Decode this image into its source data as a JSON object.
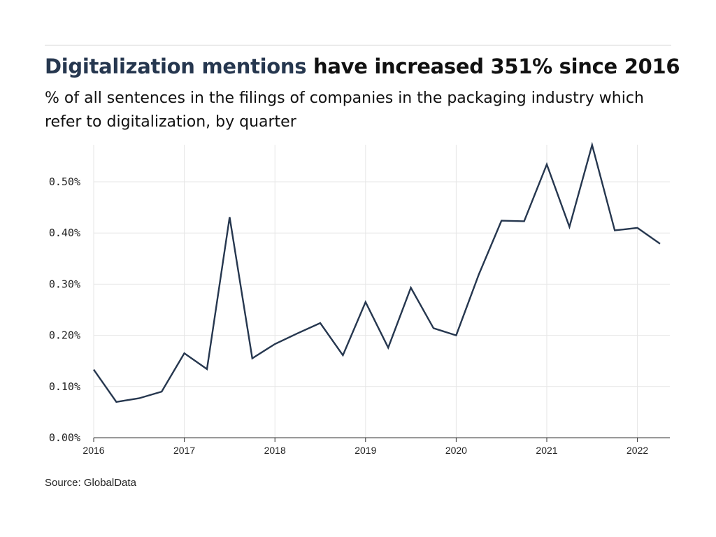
{
  "header": {
    "title_highlight": "Digitalization mentions",
    "title_rest": " have increased 351% since 2016",
    "subtitle": "% of all sentences in the filings of companies in the packaging industry which refer to digitalization, by quarter"
  },
  "footer": {
    "source": "Source: GlobalData"
  },
  "colors": {
    "highlight": "#26374f",
    "line": "#26374f",
    "grid": "#e6e6e6",
    "axis": "#333333"
  },
  "chart_data": {
    "type": "line",
    "title": "Digitalization mentions have increased 351% since 2016",
    "subtitle": "% of all sentences in the filings of companies in the packaging industry which refer to digitalization, by quarter",
    "xlabel": "",
    "ylabel": "",
    "x_ticks": [
      "2016",
      "2017",
      "2018",
      "2019",
      "2020",
      "2021",
      "2022"
    ],
    "y_ticks": [
      "0.00%",
      "0.10%",
      "0.20%",
      "0.30%",
      "0.40%",
      "0.50%"
    ],
    "xlim": [
      "2016-Q1",
      "2022-Q2"
    ],
    "ylim": [
      0,
      0.57
    ],
    "grid": true,
    "legend": "none",
    "series": [
      {
        "x": [
          "2016-Q1",
          "2016-Q2",
          "2016-Q3",
          "2016-Q4",
          "2017-Q1",
          "2017-Q2",
          "2017-Q3",
          "2017-Q4",
          "2018-Q1",
          "2018-Q2",
          "2018-Q3",
          "2018-Q4",
          "2019-Q1",
          "2019-Q2",
          "2019-Q3",
          "2019-Q4",
          "2020-Q1",
          "2020-Q2",
          "2020-Q3",
          "2020-Q4",
          "2021-Q1",
          "2021-Q2",
          "2021-Q3",
          "2021-Q4",
          "2022-Q1",
          "2022-Q2"
        ],
        "values": [
          0.133,
          0.07,
          0.077,
          0.09,
          0.165,
          0.134,
          0.431,
          0.155,
          0.183,
          0.204,
          0.224,
          0.161,
          0.265,
          0.176,
          0.293,
          0.214,
          0.2,
          0.319,
          0.424,
          0.423,
          0.534,
          0.412,
          0.572,
          0.405,
          0.41,
          0.379
        ]
      }
    ]
  }
}
